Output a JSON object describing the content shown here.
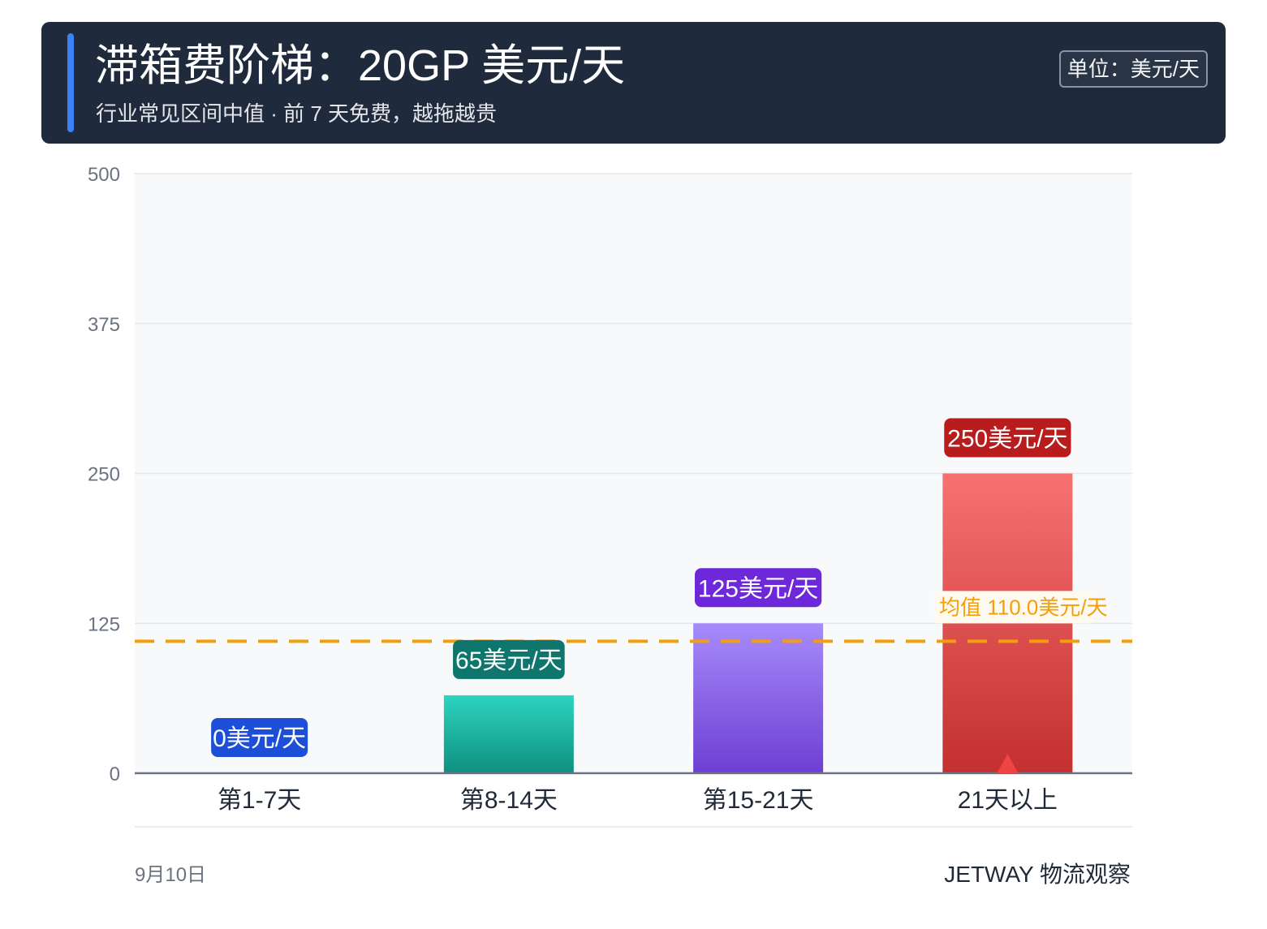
{
  "header": {
    "title": "滞箱费阶梯：20GP 美元/天",
    "subtitle": "行业常见区间中值 · 前 7 天免费，越拖越贵",
    "unit": "单位：美元/天"
  },
  "chart_data": {
    "type": "bar",
    "categories": [
      "第1-7天",
      "第8-14天",
      "第15-21天",
      "21天以上"
    ],
    "values": [
      0,
      65,
      125,
      250
    ],
    "data_labels": [
      "0美元/天",
      "65美元/天",
      "125美元/天",
      "250美元/天"
    ],
    "ylim": [
      0,
      500
    ],
    "yticks": [
      "0",
      "125",
      "250",
      "375",
      "500"
    ],
    "grid": true,
    "reference_line": {
      "value": 110,
      "label": "均值 110.0美元/天",
      "color": "#f59e0b"
    },
    "colors": {
      "bars": [
        [
          "#2d6cf0",
          "#1d4ed8"
        ],
        [
          "#2dd4bf",
          "#0f8f80"
        ],
        [
          "#a78bfa",
          "#6d3fd3"
        ],
        [
          "#f87171",
          "#c2302f"
        ]
      ],
      "labels": [
        "#1d4ed8",
        "#0f766e",
        "#6d28d9",
        "#b91c1c"
      ],
      "highlight_marker": "#ef4444"
    },
    "highlight_index": 3
  },
  "footer": {
    "date": "9月10日",
    "brand": "JETWAY 物流观察"
  }
}
